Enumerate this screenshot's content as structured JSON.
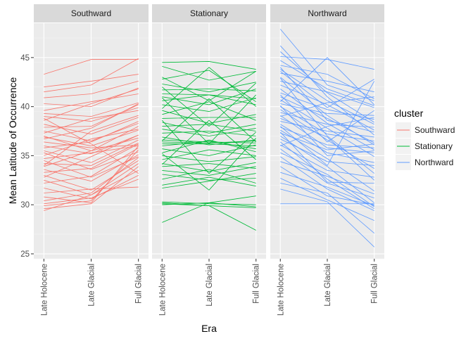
{
  "chart_data": {
    "type": "line",
    "facet_layout": "1 row x 3 columns",
    "xlabel": "Era",
    "ylabel": "Mean Latitude of Occurrence",
    "x": [
      "Late Holocene",
      "Late Glacial",
      "Full Glacial"
    ],
    "ylim": [
      24.5,
      48.5
    ],
    "yticks": [
      25,
      30,
      35,
      40,
      45
    ],
    "grid": true,
    "legend": {
      "title": "cluster",
      "placement": "right",
      "entries": [
        "Southward",
        "Stationary",
        "Northward"
      ]
    },
    "colors": {
      "Southward": "#F8766D",
      "Stationary": "#00BA38",
      "Northward": "#619CFF"
    },
    "facets": [
      {
        "name": "Southward",
        "series": [
          {
            "values": [
              43.3,
              44.8,
              44.8
            ]
          },
          {
            "values": [
              42.0,
              42.6,
              43.3
            ]
          },
          {
            "values": [
              41.5,
              42.2,
              44.9
            ]
          },
          {
            "values": [
              40.9,
              41.3,
              42.6
            ]
          },
          {
            "values": [
              40.3,
              40.0,
              41.9
            ]
          },
          {
            "values": [
              39.6,
              40.5,
              41.3
            ]
          },
          {
            "values": [
              39.3,
              39.0,
              40.4
            ]
          },
          {
            "values": [
              39.0,
              38.5,
              39.9
            ]
          },
          {
            "values": [
              38.6,
              40.3,
              41.8
            ]
          },
          {
            "values": [
              38.2,
              37.2,
              38.9
            ]
          },
          {
            "values": [
              37.9,
              38.0,
              40.2
            ]
          },
          {
            "values": [
              37.5,
              36.5,
              38.3
            ]
          },
          {
            "values": [
              37.3,
              38.8,
              39.6
            ]
          },
          {
            "values": [
              36.9,
              36.0,
              37.6
            ]
          },
          {
            "values": [
              36.7,
              37.8,
              40.3
            ]
          },
          {
            "values": [
              36.4,
              35.8,
              36.1
            ]
          },
          {
            "values": [
              36.0,
              35.2,
              37.1
            ]
          },
          {
            "values": [
              35.8,
              36.4,
              38.5
            ]
          },
          {
            "values": [
              35.5,
              34.3,
              36.6
            ]
          },
          {
            "values": [
              35.3,
              33.6,
              35.4
            ]
          },
          {
            "values": [
              35.0,
              36.7,
              37.7
            ]
          },
          {
            "values": [
              34.7,
              35.3,
              36.0
            ]
          },
          {
            "values": [
              34.5,
              32.8,
              34.9
            ]
          },
          {
            "values": [
              34.2,
              34.0,
              36.3
            ]
          },
          {
            "values": [
              33.9,
              35.5,
              38.0
            ]
          },
          {
            "values": [
              33.6,
              32.4,
              35.1
            ]
          },
          {
            "values": [
              33.3,
              33.7,
              36.2
            ]
          },
          {
            "values": [
              33.0,
              31.5,
              34.5
            ]
          },
          {
            "values": [
              32.8,
              34.9,
              37.1
            ]
          },
          {
            "values": [
              32.5,
              31.0,
              33.5
            ]
          },
          {
            "values": [
              32.2,
              32.9,
              35.8
            ]
          },
          {
            "values": [
              31.7,
              30.6,
              33.0
            ]
          },
          {
            "values": [
              31.2,
              31.6,
              31.8
            ]
          },
          {
            "values": [
              30.8,
              30.2,
              36.0
            ]
          },
          {
            "values": [
              30.4,
              31.2,
              34.8
            ]
          },
          {
            "values": [
              30.1,
              30.7,
              32.6
            ]
          },
          {
            "values": [
              29.9,
              30.4,
              35.6
            ]
          },
          {
            "values": [
              29.6,
              30.1,
              33.9
            ]
          },
          {
            "values": [
              29.4,
              31.0,
              34.2
            ]
          },
          {
            "values": [
              38.8,
              36.2,
              33.2
            ]
          },
          {
            "values": [
              37.0,
              35.5,
              36.8
            ]
          },
          {
            "values": [
              34.0,
              37.5,
              39.1
            ]
          }
        ]
      },
      {
        "name": "Stationary",
        "series": [
          {
            "values": [
              44.5,
              44.6,
              43.8
            ]
          },
          {
            "values": [
              44.1,
              42.7,
              43.6
            ]
          },
          {
            "values": [
              42.8,
              43.7,
              40.5
            ]
          },
          {
            "values": [
              42.3,
              41.5,
              42.5
            ]
          },
          {
            "values": [
              41.7,
              41.8,
              41.6
            ]
          },
          {
            "values": [
              41.3,
              41.2,
              40.8
            ]
          },
          {
            "values": [
              41.0,
              40.2,
              41.8
            ]
          },
          {
            "values": [
              40.6,
              41.2,
              40.2
            ]
          },
          {
            "values": [
              40.2,
              39.5,
              40.9
            ]
          },
          {
            "values": [
              39.6,
              38.3,
              39.2
            ]
          },
          {
            "values": [
              39.2,
              40.5,
              38.6
            ]
          },
          {
            "values": [
              38.8,
              38.9,
              38.9
            ]
          },
          {
            "values": [
              38.4,
              37.3,
              38.2
            ]
          },
          {
            "values": [
              38.0,
              38.2,
              37.5
            ]
          },
          {
            "values": [
              37.7,
              37.0,
              37.8
            ]
          },
          {
            "values": [
              37.3,
              37.5,
              37.0
            ]
          },
          {
            "values": [
              36.9,
              36.1,
              36.6
            ]
          },
          {
            "values": [
              36.6,
              36.4,
              36.3
            ]
          },
          {
            "values": [
              36.4,
              36.3,
              36.5
            ]
          },
          {
            "values": [
              36.2,
              36.2,
              36.0
            ]
          },
          {
            "values": [
              36.0,
              36.5,
              35.7
            ]
          },
          {
            "values": [
              35.7,
              35.0,
              36.1
            ]
          },
          {
            "values": [
              35.3,
              36.6,
              35.4
            ]
          },
          {
            "values": [
              35.0,
              34.4,
              34.9
            ]
          },
          {
            "values": [
              34.6,
              35.6,
              35.0
            ]
          },
          {
            "values": [
              34.2,
              33.4,
              34.3
            ]
          },
          {
            "values": [
              33.9,
              34.2,
              33.7
            ]
          },
          {
            "values": [
              33.5,
              33.0,
              33.9
            ]
          },
          {
            "values": [
              33.1,
              32.5,
              32.7
            ]
          },
          {
            "values": [
              32.6,
              33.6,
              32.2
            ]
          },
          {
            "values": [
              32.0,
              32.8,
              31.9
            ]
          },
          {
            "values": [
              31.7,
              32.4,
              33.2
            ]
          },
          {
            "values": [
              30.3,
              30.1,
              30.0
            ]
          },
          {
            "values": [
              30.1,
              29.9,
              29.7
            ]
          },
          {
            "values": [
              30.0,
              30.2,
              29.8
            ]
          },
          {
            "values": [
              28.2,
              30.2,
              30.9
            ]
          },
          {
            "values": [
              30.2,
              29.9,
              27.4
            ]
          },
          {
            "values": [
              40.9,
              36.2,
              41.2
            ]
          },
          {
            "values": [
              36.5,
              40.8,
              36.4
            ]
          },
          {
            "values": [
              38.6,
              33.2,
              37.4
            ]
          },
          {
            "values": [
              34.1,
              38.6,
              34.6
            ]
          },
          {
            "values": [
              42.0,
              38.0,
              42.4
            ]
          },
          {
            "values": [
              39.8,
              44.0,
              40.0
            ]
          },
          {
            "values": [
              35.2,
              31.5,
              36.8
            ]
          },
          {
            "values": [
              43.0,
              40.6,
              43.6
            ]
          }
        ]
      },
      {
        "name": "Northward",
        "series": [
          {
            "values": [
              47.9,
              42.2,
              40.6
            ]
          },
          {
            "values": [
              46.2,
              41.0,
              37.1
            ]
          },
          {
            "values": [
              45.6,
              41.4,
              38.4
            ]
          },
          {
            "values": [
              45.1,
              44.8,
              43.8
            ]
          },
          {
            "values": [
              44.7,
              41.8,
              40.1
            ]
          },
          {
            "values": [
              44.2,
              43.3,
              40.8
            ]
          },
          {
            "values": [
              43.8,
              40.6,
              38.2
            ]
          },
          {
            "values": [
              43.4,
              42.6,
              41.5
            ]
          },
          {
            "values": [
              43.0,
              39.1,
              36.1
            ]
          },
          {
            "values": [
              42.6,
              41.5,
              39.9
            ]
          },
          {
            "values": [
              42.2,
              40.2,
              37.6
            ]
          },
          {
            "values": [
              41.8,
              38.3,
              35.6
            ]
          },
          {
            "values": [
              41.4,
              39.7,
              38.7
            ]
          },
          {
            "values": [
              41.0,
              38.8,
              36.3
            ]
          },
          {
            "values": [
              40.7,
              37.8,
              34.9
            ]
          },
          {
            "values": [
              40.3,
              39.3,
              39.1
            ]
          },
          {
            "values": [
              40.0,
              37.2,
              36.5
            ]
          },
          {
            "values": [
              39.7,
              36.6,
              33.7
            ]
          },
          {
            "values": [
              39.4,
              38.2,
              37.9
            ]
          },
          {
            "values": [
              39.1,
              35.8,
              35.3
            ]
          },
          {
            "values": [
              38.8,
              36.9,
              32.5
            ]
          },
          {
            "values": [
              38.5,
              37.5,
              36.9
            ]
          },
          {
            "values": [
              38.2,
              35.3,
              34.3
            ]
          },
          {
            "values": [
              37.9,
              36.1,
              35.8
            ]
          },
          {
            "values": [
              37.6,
              34.7,
              31.4
            ]
          },
          {
            "values": [
              37.3,
              35.6,
              36.2
            ]
          },
          {
            "values": [
              37.0,
              33.9,
              30.2
            ]
          },
          {
            "values": [
              36.7,
              34.4,
              34.0
            ]
          },
          {
            "values": [
              36.4,
              32.6,
              29.6
            ]
          },
          {
            "values": [
              36.1,
              33.5,
              32.8
            ]
          },
          {
            "values": [
              35.7,
              32.2,
              30.7
            ]
          },
          {
            "values": [
              35.3,
              33.1,
              29.8
            ]
          },
          {
            "values": [
              34.9,
              31.6,
              29.4
            ]
          },
          {
            "values": [
              34.4,
              32.9,
              31.1
            ]
          },
          {
            "values": [
              33.9,
              30.9,
              30.0
            ]
          },
          {
            "values": [
              33.3,
              31.8,
              29.9
            ]
          },
          {
            "values": [
              32.7,
              30.5,
              28.4
            ]
          },
          {
            "values": [
              32.2,
              31.2,
              27.1
            ]
          },
          {
            "values": [
              31.6,
              30.3,
              25.7
            ]
          },
          {
            "values": [
              30.1,
              30.1,
              30.1
            ]
          },
          {
            "values": [
              40.5,
              45.0,
              40.2
            ]
          },
          {
            "values": [
              43.6,
              39.9,
              42.8
            ]
          },
          {
            "values": [
              39.0,
              40.4,
              41.0
            ]
          },
          {
            "values": [
              41.2,
              36.4,
              39.6
            ]
          },
          {
            "values": [
              44.0,
              38.6,
              37.4
            ]
          },
          {
            "values": [
              38.0,
              34.0,
              42.6
            ]
          },
          {
            "values": [
              42.9,
              37.0,
              33.2
            ]
          },
          {
            "values": [
              40.1,
              35.0,
              35.5
            ]
          },
          {
            "values": [
              36.0,
              38.0,
              38.9
            ]
          },
          {
            "values": [
              37.4,
              32.3,
              32.2
            ]
          }
        ]
      }
    ]
  }
}
